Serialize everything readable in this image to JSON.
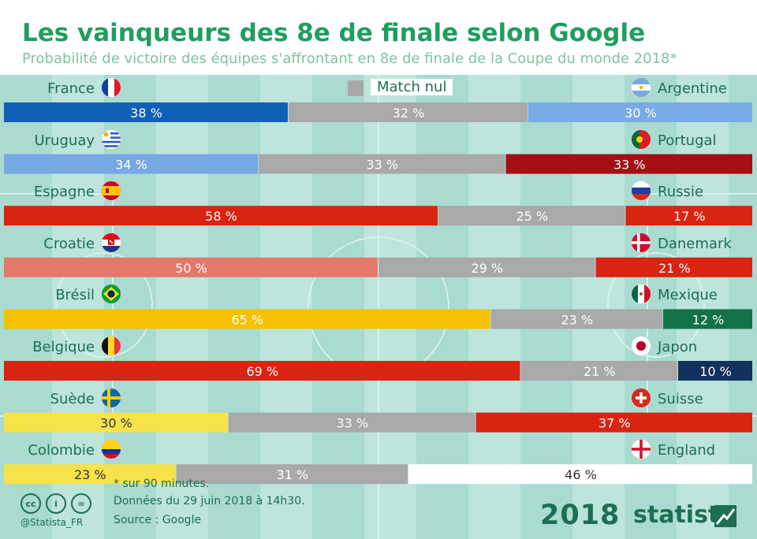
{
  "header": {
    "title": "Les vainqueurs des 8e de finale selon Google",
    "subtitle": "Probabilité de victoire des équipes s'affrontant en 8e de finale de la Coupe du monde 2018*"
  },
  "legend": {
    "draw_label": "Match nul",
    "draw_color": "#a9a9a9"
  },
  "chart_data": {
    "type": "bar",
    "orientation": "horizontal",
    "stacked": true,
    "title": "Les vainqueurs des 8e de finale selon Google",
    "subtitle": "Probabilité de victoire des équipes s'affrontant en 8e de finale de la Coupe du monde 2018*",
    "unit": "%",
    "xlim": [
      0,
      100
    ],
    "legend": [
      "Match nul"
    ],
    "matches": [
      {
        "home": "France",
        "away": "Argentine",
        "home_pct": 38,
        "draw_pct": 32,
        "away_pct": 30,
        "home_color": "#1060b8",
        "away_color": "#7aaae6",
        "home_flag": "france-flag",
        "away_flag": "argentina-flag"
      },
      {
        "home": "Uruguay",
        "away": "Portugal",
        "home_pct": 34,
        "draw_pct": 33,
        "away_pct": 33,
        "home_color": "#78a8e4",
        "away_color": "#a50f13",
        "home_flag": "uruguay-flag",
        "away_flag": "portugal-flag"
      },
      {
        "home": "Espagne",
        "away": "Russie",
        "home_pct": 58,
        "draw_pct": 25,
        "away_pct": 17,
        "home_color": "#d82411",
        "away_color": "#d82411",
        "home_flag": "spain-flag",
        "away_flag": "russia-flag"
      },
      {
        "home": "Croatie",
        "away": "Danemark",
        "home_pct": 50,
        "draw_pct": 29,
        "away_pct": 21,
        "home_color": "#e4786a",
        "away_color": "#d82411",
        "home_flag": "croatia-flag",
        "away_flag": "denmark-flag"
      },
      {
        "home": "Brésil",
        "away": "Mexique",
        "home_pct": 65,
        "draw_pct": 23,
        "away_pct": 12,
        "home_color": "#f6c101",
        "away_color": "#137147",
        "home_flag": "brazil-flag",
        "away_flag": "mexico-flag"
      },
      {
        "home": "Belgique",
        "away": "Japon",
        "home_pct": 69,
        "draw_pct": 21,
        "away_pct": 10,
        "home_color": "#d82411",
        "away_color": "#12315e",
        "home_flag": "belgium-flag",
        "away_flag": "japan-flag"
      },
      {
        "home": "Suède",
        "away": "Suisse",
        "home_pct": 30,
        "draw_pct": 33,
        "away_pct": 37,
        "home_color": "#f6e24a",
        "away_color": "#d82411",
        "home_flag": "sweden-flag",
        "away_flag": "switzerland-flag"
      },
      {
        "home": "Colombie",
        "away": "England",
        "home_pct": 23,
        "draw_pct": 31,
        "away_pct": 46,
        "home_color": "#f6e24a",
        "away_color": "#ffffff",
        "home_flag": "colombia-flag",
        "away_flag": "england-flag"
      }
    ]
  },
  "footer": {
    "note": "* sur 90 minutes.",
    "data_date": "Données du 29 juin 2018 à 14h30.",
    "source": "Source : Google",
    "handle": "@Statista_FR",
    "cc_icons": [
      "cc-icon",
      "attribution-icon",
      "noderivs-icon"
    ],
    "cc_text": [
      "cc",
      "i",
      "="
    ],
    "logo_year": "2018",
    "brand": "statista"
  }
}
